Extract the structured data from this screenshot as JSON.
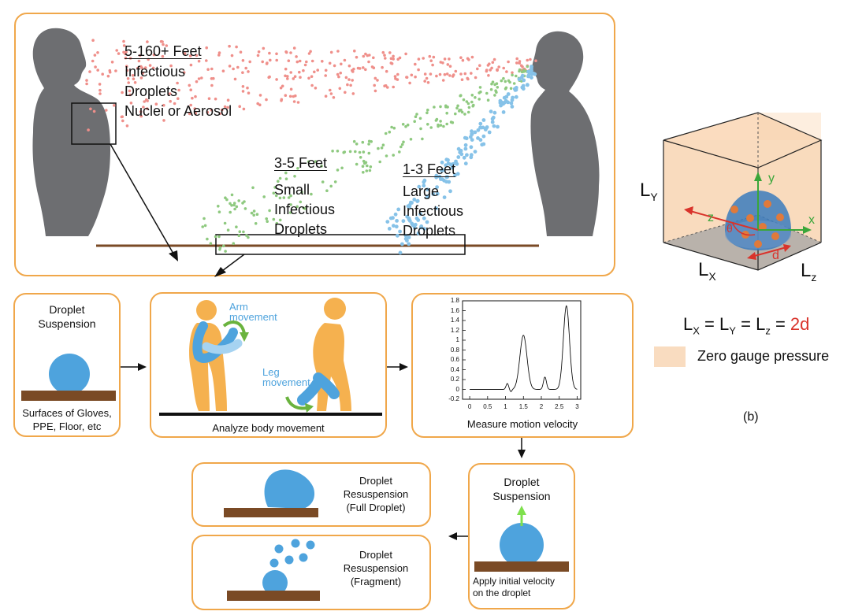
{
  "top": {
    "far": {
      "title": "5-160+ Feet",
      "lines": [
        "Infectious",
        "Droplets",
        "Nuclei or Aerosol"
      ]
    },
    "mid": {
      "title": "3-5 Feet",
      "lines": [
        "Small",
        "Infectious",
        "Droplets"
      ]
    },
    "near": {
      "title": "1-3 Feet",
      "lines": [
        "Large",
        "Infectious",
        "Droplets"
      ]
    }
  },
  "suspension": {
    "title": "Droplet\nSuspension",
    "caption": "Surfaces of Gloves,\nPPE, Floor, etc"
  },
  "body": {
    "arm_label": "Arm\nmovement",
    "leg_label": "Leg\nmovement",
    "caption": "Analyze body movement"
  },
  "velocity": {
    "caption": "Measure motion velocity",
    "y_ticks": [
      "1.8",
      "1.6",
      "1.4",
      "1.2",
      "1",
      "0.8",
      "0.6",
      "0.4",
      "0.2",
      "0",
      "-0.2"
    ],
    "x_ticks": [
      "0",
      "0.5",
      "1",
      "1.5",
      "2",
      "2.5",
      "3"
    ]
  },
  "apply": {
    "title": "Droplet\nSuspension",
    "caption": "Apply initial velocity\non the droplet"
  },
  "full": {
    "label": "Droplet\nResuspension\n(Full Droplet)"
  },
  "fragment": {
    "label": "Droplet\nResuspension\n(Fragment)"
  },
  "cube": {
    "ly": "L",
    "ly_sub": "Y",
    "lx": "L",
    "lx_sub": "X",
    "lz": "L",
    "lz_sub": "z",
    "axis_x": "x",
    "axis_y": "y",
    "axis_z": "z",
    "theta": "θ",
    "d_label": "d"
  },
  "equation": {
    "l": "L",
    "sx": "X",
    "sy": "Y",
    "sz": "z",
    "eq": "=",
    "rhs": "2d"
  },
  "legend": {
    "label": "Zero gauge pressure",
    "color": "#f9dcc0"
  },
  "panel_b": "(b)",
  "colors": {
    "orange": "#f0a74a",
    "blue": "#4ea3dd",
    "brown": "#7a4a25",
    "red": "#d9332b",
    "green": "#3aa63a"
  }
}
